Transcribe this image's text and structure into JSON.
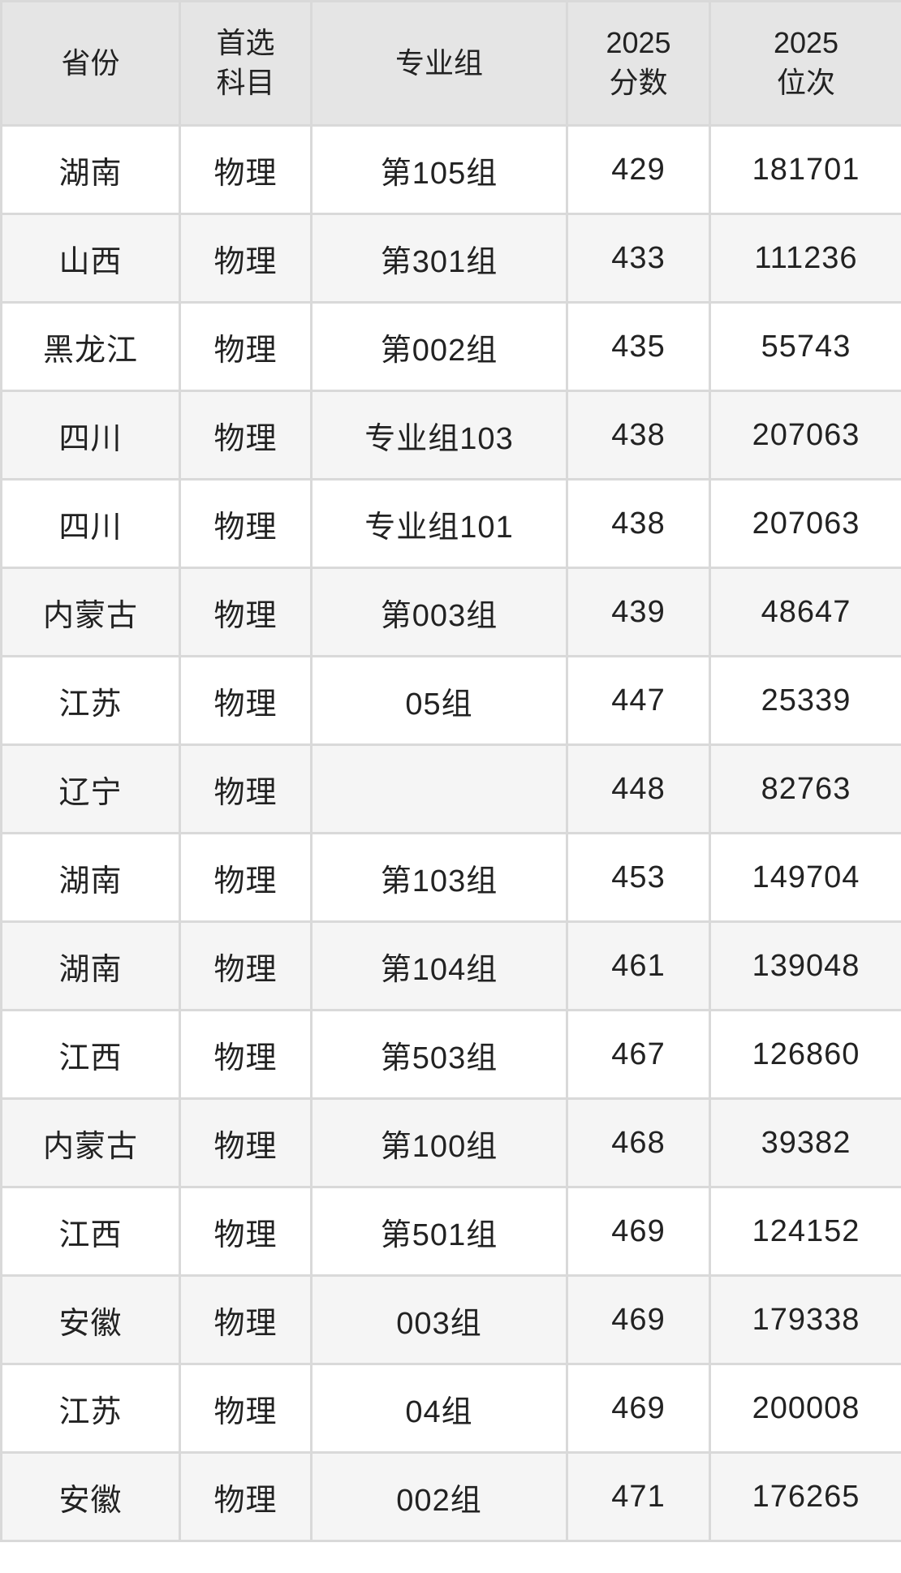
{
  "colors": {
    "header_bg": "#e5e5e5",
    "row_bg": "#ffffff",
    "row_alt_bg": "#f5f5f5",
    "border": "#d9d9d9",
    "text": "#222222"
  },
  "chart_data": {
    "type": "table",
    "columns": [
      {
        "key": "province",
        "label": "省份"
      },
      {
        "key": "subject",
        "label": "首选\n科目"
      },
      {
        "key": "group",
        "label": "专业组"
      },
      {
        "key": "score",
        "label": "2025\n分数"
      },
      {
        "key": "rank",
        "label": "2025\n位次"
      }
    ],
    "rows": [
      {
        "province": "湖南",
        "subject": "物理",
        "group": "第105组",
        "score": "429",
        "rank": "181701"
      },
      {
        "province": "山西",
        "subject": "物理",
        "group": "第301组",
        "score": "433",
        "rank": "111236"
      },
      {
        "province": "黑龙江",
        "subject": "物理",
        "group": "第002组",
        "score": "435",
        "rank": "55743"
      },
      {
        "province": "四川",
        "subject": "物理",
        "group": "专业组103",
        "score": "438",
        "rank": "207063"
      },
      {
        "province": "四川",
        "subject": "物理",
        "group": "专业组101",
        "score": "438",
        "rank": "207063"
      },
      {
        "province": "内蒙古",
        "subject": "物理",
        "group": "第003组",
        "score": "439",
        "rank": "48647"
      },
      {
        "province": "江苏",
        "subject": "物理",
        "group": "05组",
        "score": "447",
        "rank": "25339"
      },
      {
        "province": "辽宁",
        "subject": "物理",
        "group": "",
        "score": "448",
        "rank": "82763"
      },
      {
        "province": "湖南",
        "subject": "物理",
        "group": "第103组",
        "score": "453",
        "rank": "149704"
      },
      {
        "province": "湖南",
        "subject": "物理",
        "group": "第104组",
        "score": "461",
        "rank": "139048"
      },
      {
        "province": "江西",
        "subject": "物理",
        "group": "第503组",
        "score": "467",
        "rank": "126860"
      },
      {
        "province": "内蒙古",
        "subject": "物理",
        "group": "第100组",
        "score": "468",
        "rank": "39382"
      },
      {
        "province": "江西",
        "subject": "物理",
        "group": "第501组",
        "score": "469",
        "rank": "124152"
      },
      {
        "province": "安徽",
        "subject": "物理",
        "group": "003组",
        "score": "469",
        "rank": "179338"
      },
      {
        "province": "江苏",
        "subject": "物理",
        "group": "04组",
        "score": "469",
        "rank": "200008"
      },
      {
        "province": "安徽",
        "subject": "物理",
        "group": "002组",
        "score": "471",
        "rank": "176265"
      }
    ]
  }
}
